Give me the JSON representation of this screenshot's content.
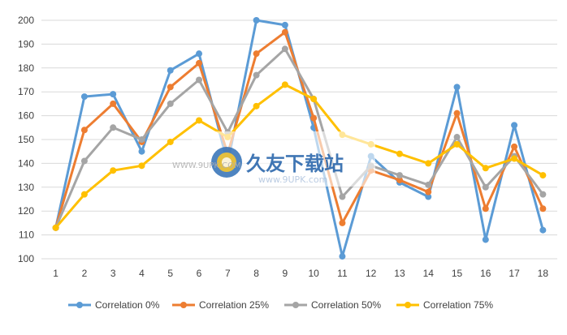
{
  "chart_data": {
    "type": "line",
    "title": "",
    "xlabel": "",
    "ylabel": "",
    "x": [
      1,
      2,
      3,
      4,
      5,
      6,
      7,
      8,
      9,
      10,
      11,
      12,
      13,
      14,
      15,
      16,
      17,
      18
    ],
    "ylim": [
      100,
      200
    ],
    "yticks": [
      100,
      110,
      120,
      130,
      140,
      150,
      160,
      170,
      180,
      190,
      200
    ],
    "grid": "horizontal",
    "legend_position": "bottom",
    "series": [
      {
        "name": "Correlation 0%",
        "color": "#5B9BD5",
        "values": [
          113,
          168,
          169,
          145,
          179,
          186,
          140,
          200,
          198,
          155,
          101,
          143,
          132,
          126,
          172,
          108,
          156,
          112
        ]
      },
      {
        "name": "Correlation 25%",
        "color": "#ED7D31",
        "values": [
          113,
          154,
          165,
          149,
          172,
          182,
          144,
          186,
          195,
          159,
          115,
          137,
          133,
          128,
          161,
          121,
          147,
          121
        ]
      },
      {
        "name": "Correlation 50%",
        "color": "#A5A5A5",
        "values": [
          113,
          141,
          155,
          150,
          165,
          175,
          153,
          177,
          188,
          167,
          126,
          139,
          135,
          131,
          151,
          130,
          143,
          127
        ]
      },
      {
        "name": "Correlation 75%",
        "color": "#FFC000",
        "values": [
          113,
          127,
          137,
          139,
          149,
          158,
          151,
          164,
          173,
          167,
          152,
          148,
          144,
          140,
          148,
          138,
          142,
          135
        ]
      }
    ]
  },
  "watermark": {
    "brand": "久友下载站",
    "url_left": "WWW.9UPK.COM",
    "url_right": "www.9UPK.com"
  }
}
